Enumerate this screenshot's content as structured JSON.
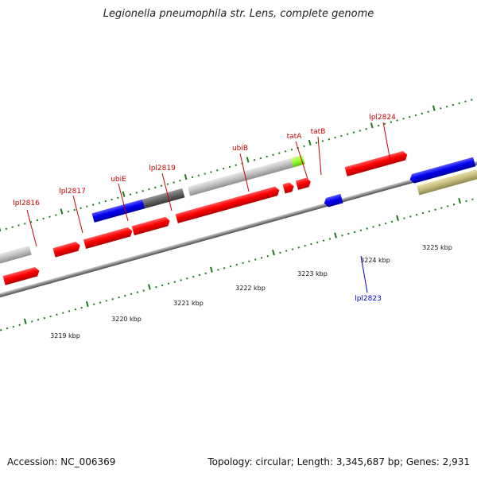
{
  "title": "Legionella pneumophila str. Lens, complete genome",
  "footer": {
    "accession": "Accession: NC_006369",
    "topology": "Topology: circular; Length: 3,345,687 bp; Genes: 2,931"
  },
  "colors": {
    "cds_forward": "#ff0000",
    "cds_reverse_highlight": "#0000ff",
    "gene_light": "#c0c0c0",
    "gene_dark": "#666666",
    "olive": "#7a9a2a",
    "khaki": "#c8c080",
    "lime": "#99ff33",
    "tick": "#1a7a1a",
    "backbone": "#888888",
    "label_forward": "#cc0000",
    "label_reverse": "#0000cc"
  },
  "kbp_labels": [
    "3219 kbp",
    "3220 kbp",
    "3221 kbp",
    "3222 kbp",
    "3223 kbp",
    "3224 kbp",
    "3225 kbp"
  ],
  "gene_labels": [
    {
      "text": "lpl2816",
      "color": "#cc0000"
    },
    {
      "text": "lpl2817",
      "color": "#cc0000"
    },
    {
      "text": "ubiE",
      "color": "#cc0000"
    },
    {
      "text": "lpl2819",
      "color": "#cc0000"
    },
    {
      "text": "ubiB",
      "color": "#cc0000"
    },
    {
      "text": "tatA",
      "color": "#cc0000"
    },
    {
      "text": "tatB",
      "color": "#cc0000"
    },
    {
      "text": "lpl2824",
      "color": "#cc0000"
    },
    {
      "text": "lpl2823",
      "color": "#0000cc"
    }
  ]
}
